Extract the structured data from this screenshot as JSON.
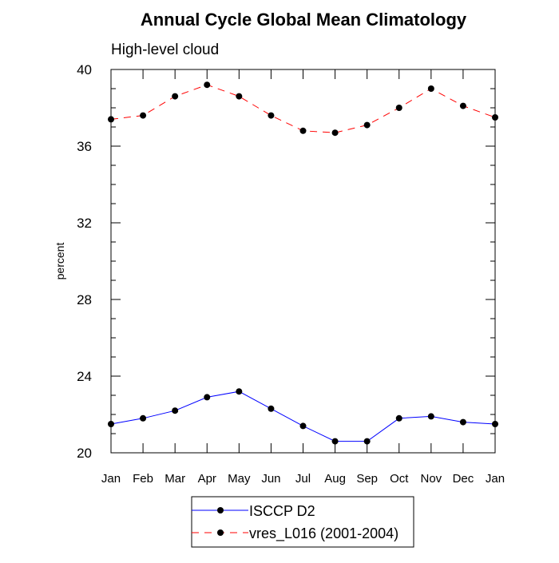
{
  "chart_data": {
    "type": "line",
    "title": "Annual Cycle Global Mean Climatology",
    "subtitle": "High-level cloud",
    "ylabel": "percent",
    "xlabel": "",
    "categories": [
      "Jan",
      "Feb",
      "Mar",
      "Apr",
      "May",
      "Jun",
      "Jul",
      "Aug",
      "Sep",
      "Oct",
      "Nov",
      "Dec",
      "Jan"
    ],
    "ylim": [
      20,
      40
    ],
    "yticks": [
      20,
      24,
      28,
      32,
      36,
      40
    ],
    "grid": false,
    "legend_position": "bottom-center",
    "series": [
      {
        "name": "ISCCP D2",
        "color": "#0000ff",
        "line_style": "solid",
        "marker": "circle",
        "values": [
          21.5,
          21.8,
          22.2,
          22.9,
          23.2,
          22.3,
          21.4,
          20.6,
          20.6,
          21.8,
          21.9,
          21.6,
          21.5
        ]
      },
      {
        "name": "vres_L016 (2001-2004)",
        "color": "#ff0000",
        "line_style": "dashed",
        "marker": "circle",
        "values": [
          37.4,
          37.6,
          38.6,
          39.2,
          38.6,
          37.6,
          36.8,
          36.7,
          37.1,
          38.0,
          39.0,
          38.1,
          37.5
        ]
      }
    ]
  }
}
